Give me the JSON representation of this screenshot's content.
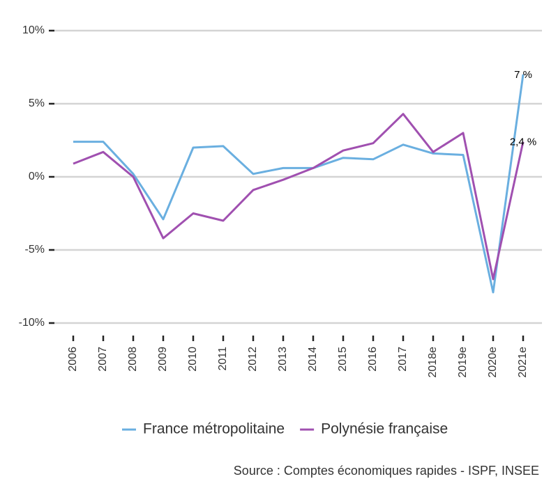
{
  "chart_data": {
    "type": "line",
    "categories": [
      "2006",
      "2007",
      "2008",
      "2009",
      "2010",
      "2011",
      "2012",
      "2013",
      "2014",
      "2015",
      "2016",
      "2017",
      "2018e",
      "2019e",
      "2020e",
      "2021e"
    ],
    "series": [
      {
        "name": "France métropolitaine",
        "color": "#6aafe0",
        "values": [
          2.4,
          2.4,
          0.2,
          -2.9,
          2.0,
          2.1,
          0.2,
          0.6,
          0.6,
          1.3,
          1.2,
          2.2,
          1.6,
          1.5,
          -7.9,
          7.0
        ],
        "value_labels": [
          null,
          null,
          null,
          null,
          null,
          null,
          null,
          null,
          null,
          null,
          null,
          null,
          null,
          null,
          null,
          "7 %"
        ]
      },
      {
        "name": "Polynésie française",
        "color": "#a050b0",
        "values": [
          0.9,
          1.7,
          0.0,
          -4.2,
          -2.5,
          -3.0,
          -0.9,
          -0.2,
          0.6,
          1.8,
          2.3,
          4.3,
          1.7,
          3.0,
          -7.0,
          2.4
        ],
        "value_labels": [
          null,
          null,
          null,
          null,
          null,
          null,
          null,
          null,
          null,
          null,
          null,
          null,
          null,
          null,
          null,
          "2,4 %"
        ]
      }
    ],
    "ylim": [
      -10,
      10
    ],
    "yticks": [
      {
        "value": -10,
        "label": "-10%"
      },
      {
        "value": -5,
        "label": "-5%"
      },
      {
        "value": 0,
        "label": "0%"
      },
      {
        "value": 5,
        "label": "5%"
      },
      {
        "value": 10,
        "label": "10%"
      }
    ],
    "grid": true,
    "legend": "bottom",
    "source": "Source : Comptes économiques rapides - ISPF, INSEE"
  }
}
